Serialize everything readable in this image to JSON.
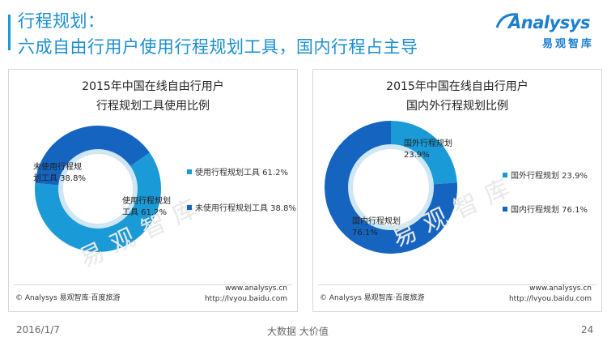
{
  "header": {
    "title_line1": "行程规划：",
    "title_line2": "六成自由行用户使用行程规划工具，国内行程占主导"
  },
  "logo": {
    "word": "Analysys",
    "cn": "易观智库"
  },
  "watermark": "易观智库",
  "colors": {
    "accent": "#1a9ad6",
    "light_blue": "#1a9ad6",
    "dark_blue": "#1565c0"
  },
  "panels": [
    {
      "title_line1": "2015年中国在线自由行用户",
      "title_line2": "行程规划工具使用比例",
      "source_left": "© Analysys 易观智库·百度旅游",
      "source_right_line1": "www.analysys.cn",
      "source_right_line2": "http://lvyou.baidu.com",
      "legend": [
        {
          "label": "使用行程规划工具 61.2%",
          "color": "#1a9ad6"
        },
        {
          "label": "未使用行程规划工具 38.8%",
          "color": "#1565c0"
        }
      ],
      "slice_labels": [
        {
          "line1": "使用行程规划",
          "line2": "工具 61.2%"
        },
        {
          "line1": "未使用行程规",
          "line2": "划工具 38.8%"
        }
      ]
    },
    {
      "title_line1": "2015年中国在线自由行用户",
      "title_line2": "国内外行程规划比例",
      "source_left": "© Analysys 易观智库·百度旅游",
      "source_right_line1": "www.analysys.cn",
      "source_right_line2": "http://lvyou.baidu.com",
      "legend": [
        {
          "label": "国外行程规划 23.9%",
          "color": "#1a9ad6"
        },
        {
          "label": "国内行程规划 76.1%",
          "color": "#1565c0"
        }
      ],
      "slice_labels": [
        {
          "line1": "国外行程规划",
          "line2": "23.9%"
        },
        {
          "line1": "国内行程规划",
          "line2": "76.1%"
        }
      ]
    }
  ],
  "footer": {
    "date": "2016/1/7",
    "center": "大数据  大价值",
    "page": "24"
  },
  "chart_data": [
    {
      "type": "pie",
      "title": "2015年中国在线自由行用户行程规划工具使用比例",
      "categories": [
        "使用行程规划工具",
        "未使用行程规划工具"
      ],
      "values": [
        61.2,
        38.8
      ],
      "colors": [
        "#1a9ad6",
        "#1565c0"
      ],
      "donut": true,
      "legend_position": "right"
    },
    {
      "type": "pie",
      "title": "2015年中国在线自由行用户国内外行程规划比例",
      "categories": [
        "国外行程规划",
        "国内行程规划"
      ],
      "values": [
        23.9,
        76.1
      ],
      "colors": [
        "#1a9ad6",
        "#1565c0"
      ],
      "donut": true,
      "legend_position": "right"
    }
  ]
}
